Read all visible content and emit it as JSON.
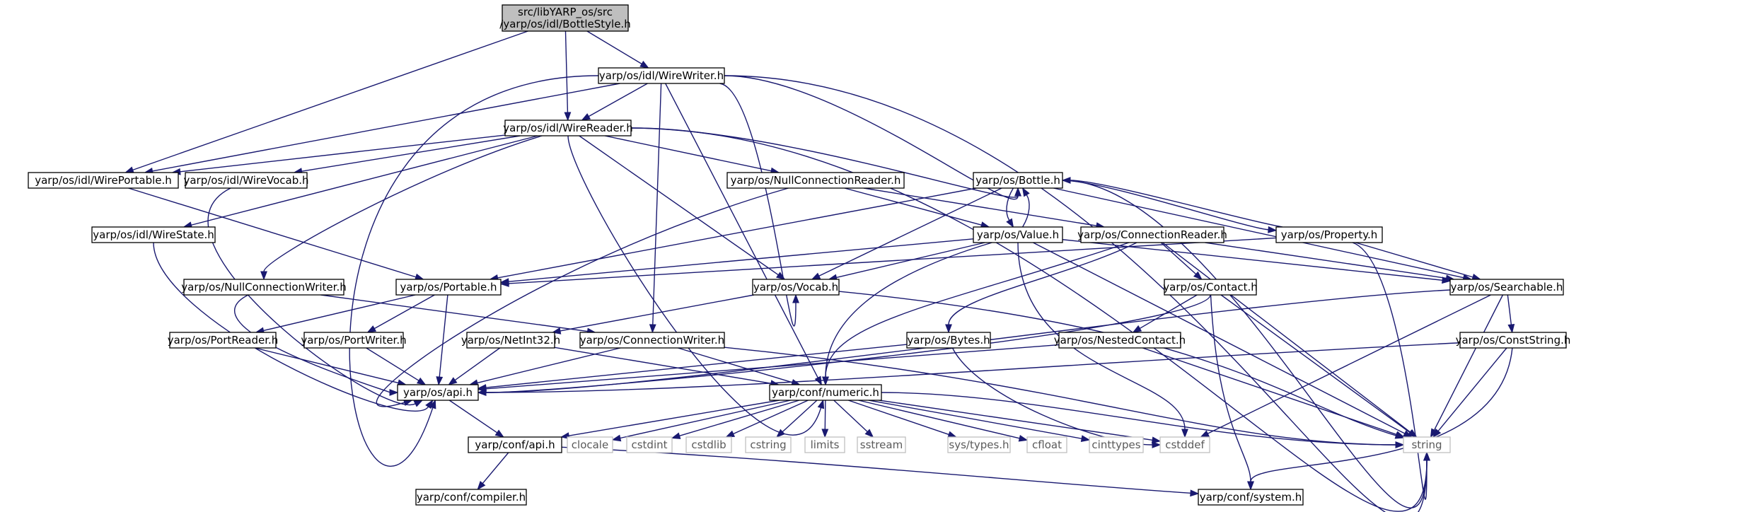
{
  "graph": {
    "nodes": [
      {
        "id": "root",
        "label": [
          "src/libYARP_os/src",
          "/yarp/os/idl/BottleStyle.h"
        ],
        "kind": "root"
      },
      {
        "id": "wirewriter",
        "label": [
          "yarp/os/idl/WireWriter.h"
        ],
        "kind": "header"
      },
      {
        "id": "wirereader",
        "label": [
          "yarp/os/idl/WireReader.h"
        ],
        "kind": "header"
      },
      {
        "id": "wireportable",
        "label": [
          "yarp/os/idl/WirePortable.h"
        ],
        "kind": "header"
      },
      {
        "id": "wirevocab",
        "label": [
          "yarp/os/idl/WireVocab.h"
        ],
        "kind": "header"
      },
      {
        "id": "nullconnreader",
        "label": [
          "yarp/os/NullConnectionReader.h"
        ],
        "kind": "header"
      },
      {
        "id": "bottle",
        "label": [
          "yarp/os/Bottle.h"
        ],
        "kind": "header"
      },
      {
        "id": "wirestate",
        "label": [
          "yarp/os/idl/WireState.h"
        ],
        "kind": "header"
      },
      {
        "id": "value",
        "label": [
          "yarp/os/Value.h"
        ],
        "kind": "header"
      },
      {
        "id": "connreader",
        "label": [
          "yarp/os/ConnectionReader.h"
        ],
        "kind": "header"
      },
      {
        "id": "property",
        "label": [
          "yarp/os/Property.h"
        ],
        "kind": "header"
      },
      {
        "id": "nullconnwriter",
        "label": [
          "yarp/os/NullConnectionWriter.h"
        ],
        "kind": "header"
      },
      {
        "id": "portable",
        "label": [
          "yarp/os/Portable.h"
        ],
        "kind": "header"
      },
      {
        "id": "vocab",
        "label": [
          "yarp/os/Vocab.h"
        ],
        "kind": "header"
      },
      {
        "id": "contact",
        "label": [
          "yarp/os/Contact.h"
        ],
        "kind": "header"
      },
      {
        "id": "searchable",
        "label": [
          "yarp/os/Searchable.h"
        ],
        "kind": "header"
      },
      {
        "id": "portreader",
        "label": [
          "yarp/os/PortReader.h"
        ],
        "kind": "header"
      },
      {
        "id": "portwriter",
        "label": [
          "yarp/os/PortWriter.h"
        ],
        "kind": "header"
      },
      {
        "id": "netint32",
        "label": [
          "yarp/os/NetInt32.h"
        ],
        "kind": "header"
      },
      {
        "id": "connwriter",
        "label": [
          "yarp/os/ConnectionWriter.h"
        ],
        "kind": "header"
      },
      {
        "id": "bytes",
        "label": [
          "yarp/os/Bytes.h"
        ],
        "kind": "header"
      },
      {
        "id": "nestedcontact",
        "label": [
          "yarp/os/NestedContact.h"
        ],
        "kind": "header"
      },
      {
        "id": "conststring",
        "label": [
          "yarp/os/ConstString.h"
        ],
        "kind": "header"
      },
      {
        "id": "osapi",
        "label": [
          "yarp/os/api.h"
        ],
        "kind": "header"
      },
      {
        "id": "numeric",
        "label": [
          "yarp/conf/numeric.h"
        ],
        "kind": "header"
      },
      {
        "id": "confapi",
        "label": [
          "yarp/conf/api.h"
        ],
        "kind": "header"
      },
      {
        "id": "clocale",
        "label": [
          "clocale"
        ],
        "kind": "system"
      },
      {
        "id": "cstdint",
        "label": [
          "cstdint"
        ],
        "kind": "system"
      },
      {
        "id": "cstdlib",
        "label": [
          "cstdlib"
        ],
        "kind": "system"
      },
      {
        "id": "cstring",
        "label": [
          "cstring"
        ],
        "kind": "system"
      },
      {
        "id": "limits",
        "label": [
          "limits"
        ],
        "kind": "system"
      },
      {
        "id": "sstream",
        "label": [
          "sstream"
        ],
        "kind": "system"
      },
      {
        "id": "systypes",
        "label": [
          "sys/types.h"
        ],
        "kind": "system"
      },
      {
        "id": "cfloat",
        "label": [
          "cfloat"
        ],
        "kind": "system"
      },
      {
        "id": "cinttypes",
        "label": [
          "cinttypes"
        ],
        "kind": "system"
      },
      {
        "id": "cstddef",
        "label": [
          "cstddef"
        ],
        "kind": "system"
      },
      {
        "id": "string",
        "label": [
          "string"
        ],
        "kind": "system"
      },
      {
        "id": "compiler",
        "label": [
          "yarp/conf/compiler.h"
        ],
        "kind": "header"
      },
      {
        "id": "system",
        "label": [
          "yarp/conf/system.h"
        ],
        "kind": "header"
      }
    ],
    "edges": [
      [
        "root",
        "wirewriter"
      ],
      [
        "root",
        "wirereader"
      ],
      [
        "root",
        "wireportable"
      ],
      [
        "wirewriter",
        "wirereader"
      ],
      [
        "wirewriter",
        "wireportable"
      ],
      [
        "wirewriter",
        "bottle"
      ],
      [
        "wirewriter",
        "vocab"
      ],
      [
        "wirewriter",
        "connwriter"
      ],
      [
        "wirewriter",
        "numeric"
      ],
      [
        "wirewriter",
        "osapi"
      ],
      [
        "wirewriter",
        "string"
      ],
      [
        "wirereader",
        "wireportable"
      ],
      [
        "wirereader",
        "wirevocab"
      ],
      [
        "wirereader",
        "nullconnreader"
      ],
      [
        "wirereader",
        "bottle"
      ],
      [
        "wirereader",
        "wirestate"
      ],
      [
        "wirereader",
        "nullconnwriter"
      ],
      [
        "wirereader",
        "vocab"
      ],
      [
        "wirereader",
        "numeric"
      ],
      [
        "wirereader",
        "string"
      ],
      [
        "wireportable",
        "portable"
      ],
      [
        "wirevocab",
        "osapi"
      ],
      [
        "wirestate",
        "osapi"
      ],
      [
        "nullconnreader",
        "connreader"
      ],
      [
        "nullconnreader",
        "value"
      ],
      [
        "nullconnreader",
        "osapi"
      ],
      [
        "bottle",
        "value"
      ],
      [
        "bottle",
        "property"
      ],
      [
        "bottle",
        "searchable"
      ],
      [
        "bottle",
        "portable"
      ],
      [
        "bottle",
        "vocab"
      ],
      [
        "bottle",
        "string"
      ],
      [
        "value",
        "bottle"
      ],
      [
        "value",
        "portable"
      ],
      [
        "value",
        "vocab"
      ],
      [
        "value",
        "searchable"
      ],
      [
        "value",
        "numeric"
      ],
      [
        "value",
        "cstddef"
      ],
      [
        "value",
        "string"
      ],
      [
        "property",
        "bottle"
      ],
      [
        "property",
        "searchable"
      ],
      [
        "property",
        "portable"
      ],
      [
        "property",
        "string"
      ],
      [
        "connreader",
        "contact"
      ],
      [
        "connreader",
        "bytes"
      ],
      [
        "connreader",
        "searchable"
      ],
      [
        "connreader",
        "numeric"
      ],
      [
        "connreader",
        "string"
      ],
      [
        "nullconnwriter",
        "connwriter"
      ],
      [
        "nullconnwriter",
        "osapi"
      ],
      [
        "portable",
        "portreader"
      ],
      [
        "portable",
        "portwriter"
      ],
      [
        "portable",
        "osapi"
      ],
      [
        "vocab",
        "netint32"
      ],
      [
        "vocab",
        "string"
      ],
      [
        "contact",
        "nestedcontact"
      ],
      [
        "contact",
        "osapi"
      ],
      [
        "contact",
        "string"
      ],
      [
        "contact",
        "system"
      ],
      [
        "searchable",
        "conststring"
      ],
      [
        "searchable",
        "osapi"
      ],
      [
        "searchable",
        "cstddef"
      ],
      [
        "searchable",
        "string"
      ],
      [
        "portreader",
        "osapi"
      ],
      [
        "portwriter",
        "osapi"
      ],
      [
        "netint32",
        "osapi"
      ],
      [
        "netint32",
        "numeric"
      ],
      [
        "connwriter",
        "osapi"
      ],
      [
        "connwriter",
        "numeric"
      ],
      [
        "connwriter",
        "string"
      ],
      [
        "bytes",
        "osapi"
      ],
      [
        "bytes",
        "cstddef"
      ],
      [
        "nestedcontact",
        "osapi"
      ],
      [
        "nestedcontact",
        "string"
      ],
      [
        "conststring",
        "osapi"
      ],
      [
        "conststring",
        "string"
      ],
      [
        "conststring",
        "system"
      ],
      [
        "osapi",
        "confapi"
      ],
      [
        "numeric",
        "confapi"
      ],
      [
        "numeric",
        "clocale"
      ],
      [
        "numeric",
        "cstdint"
      ],
      [
        "numeric",
        "cstdlib"
      ],
      [
        "numeric",
        "cstring"
      ],
      [
        "numeric",
        "limits"
      ],
      [
        "numeric",
        "sstream"
      ],
      [
        "numeric",
        "systypes"
      ],
      [
        "numeric",
        "cfloat"
      ],
      [
        "numeric",
        "cinttypes"
      ],
      [
        "numeric",
        "cstddef"
      ],
      [
        "numeric",
        "string"
      ],
      [
        "confapi",
        "compiler"
      ],
      [
        "confapi",
        "system"
      ]
    ]
  },
  "colors": {
    "edge": "#191970",
    "root_fill": "#bfbfbf",
    "node_border": "#000000",
    "system_border": "#bfbfbf"
  }
}
